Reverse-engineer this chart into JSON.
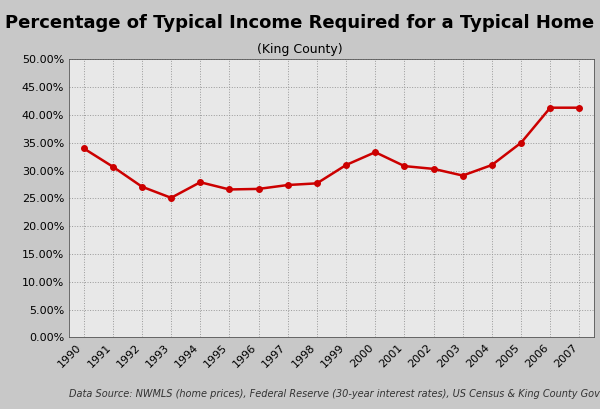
{
  "title": "Percentage of Typical Income Required for a Typical Home",
  "subtitle": "(King County)",
  "years": [
    1990,
    1991,
    1992,
    1993,
    1994,
    1995,
    1996,
    1997,
    1998,
    1999,
    2000,
    2001,
    2002,
    2003,
    2004,
    2005,
    2006,
    2007
  ],
  "values": [
    0.34,
    0.307,
    0.271,
    0.251,
    0.279,
    0.266,
    0.267,
    0.274,
    0.277,
    0.31,
    0.333,
    0.308,
    0.303,
    0.291,
    0.31,
    0.35,
    0.413,
    0.413
  ],
  "line_color": "#cc0000",
  "marker": "o",
  "marker_size": 4,
  "line_width": 1.8,
  "bg_color_outer": "#c8c8c8",
  "bg_color_plot": "#e8e8e8",
  "grid_color": "#999999",
  "ytick_values": [
    0.0,
    0.05,
    0.1,
    0.15,
    0.2,
    0.25,
    0.3,
    0.35,
    0.4,
    0.45,
    0.5
  ],
  "ylim": [
    0.0,
    0.5
  ],
  "caption": "Data Source: NWMLS (home prices), Federal Reserve (30-year interest rates), US Census & King County Government (incomes)",
  "title_fontsize": 13,
  "subtitle_fontsize": 9,
  "tick_fontsize": 8,
  "caption_fontsize": 7
}
